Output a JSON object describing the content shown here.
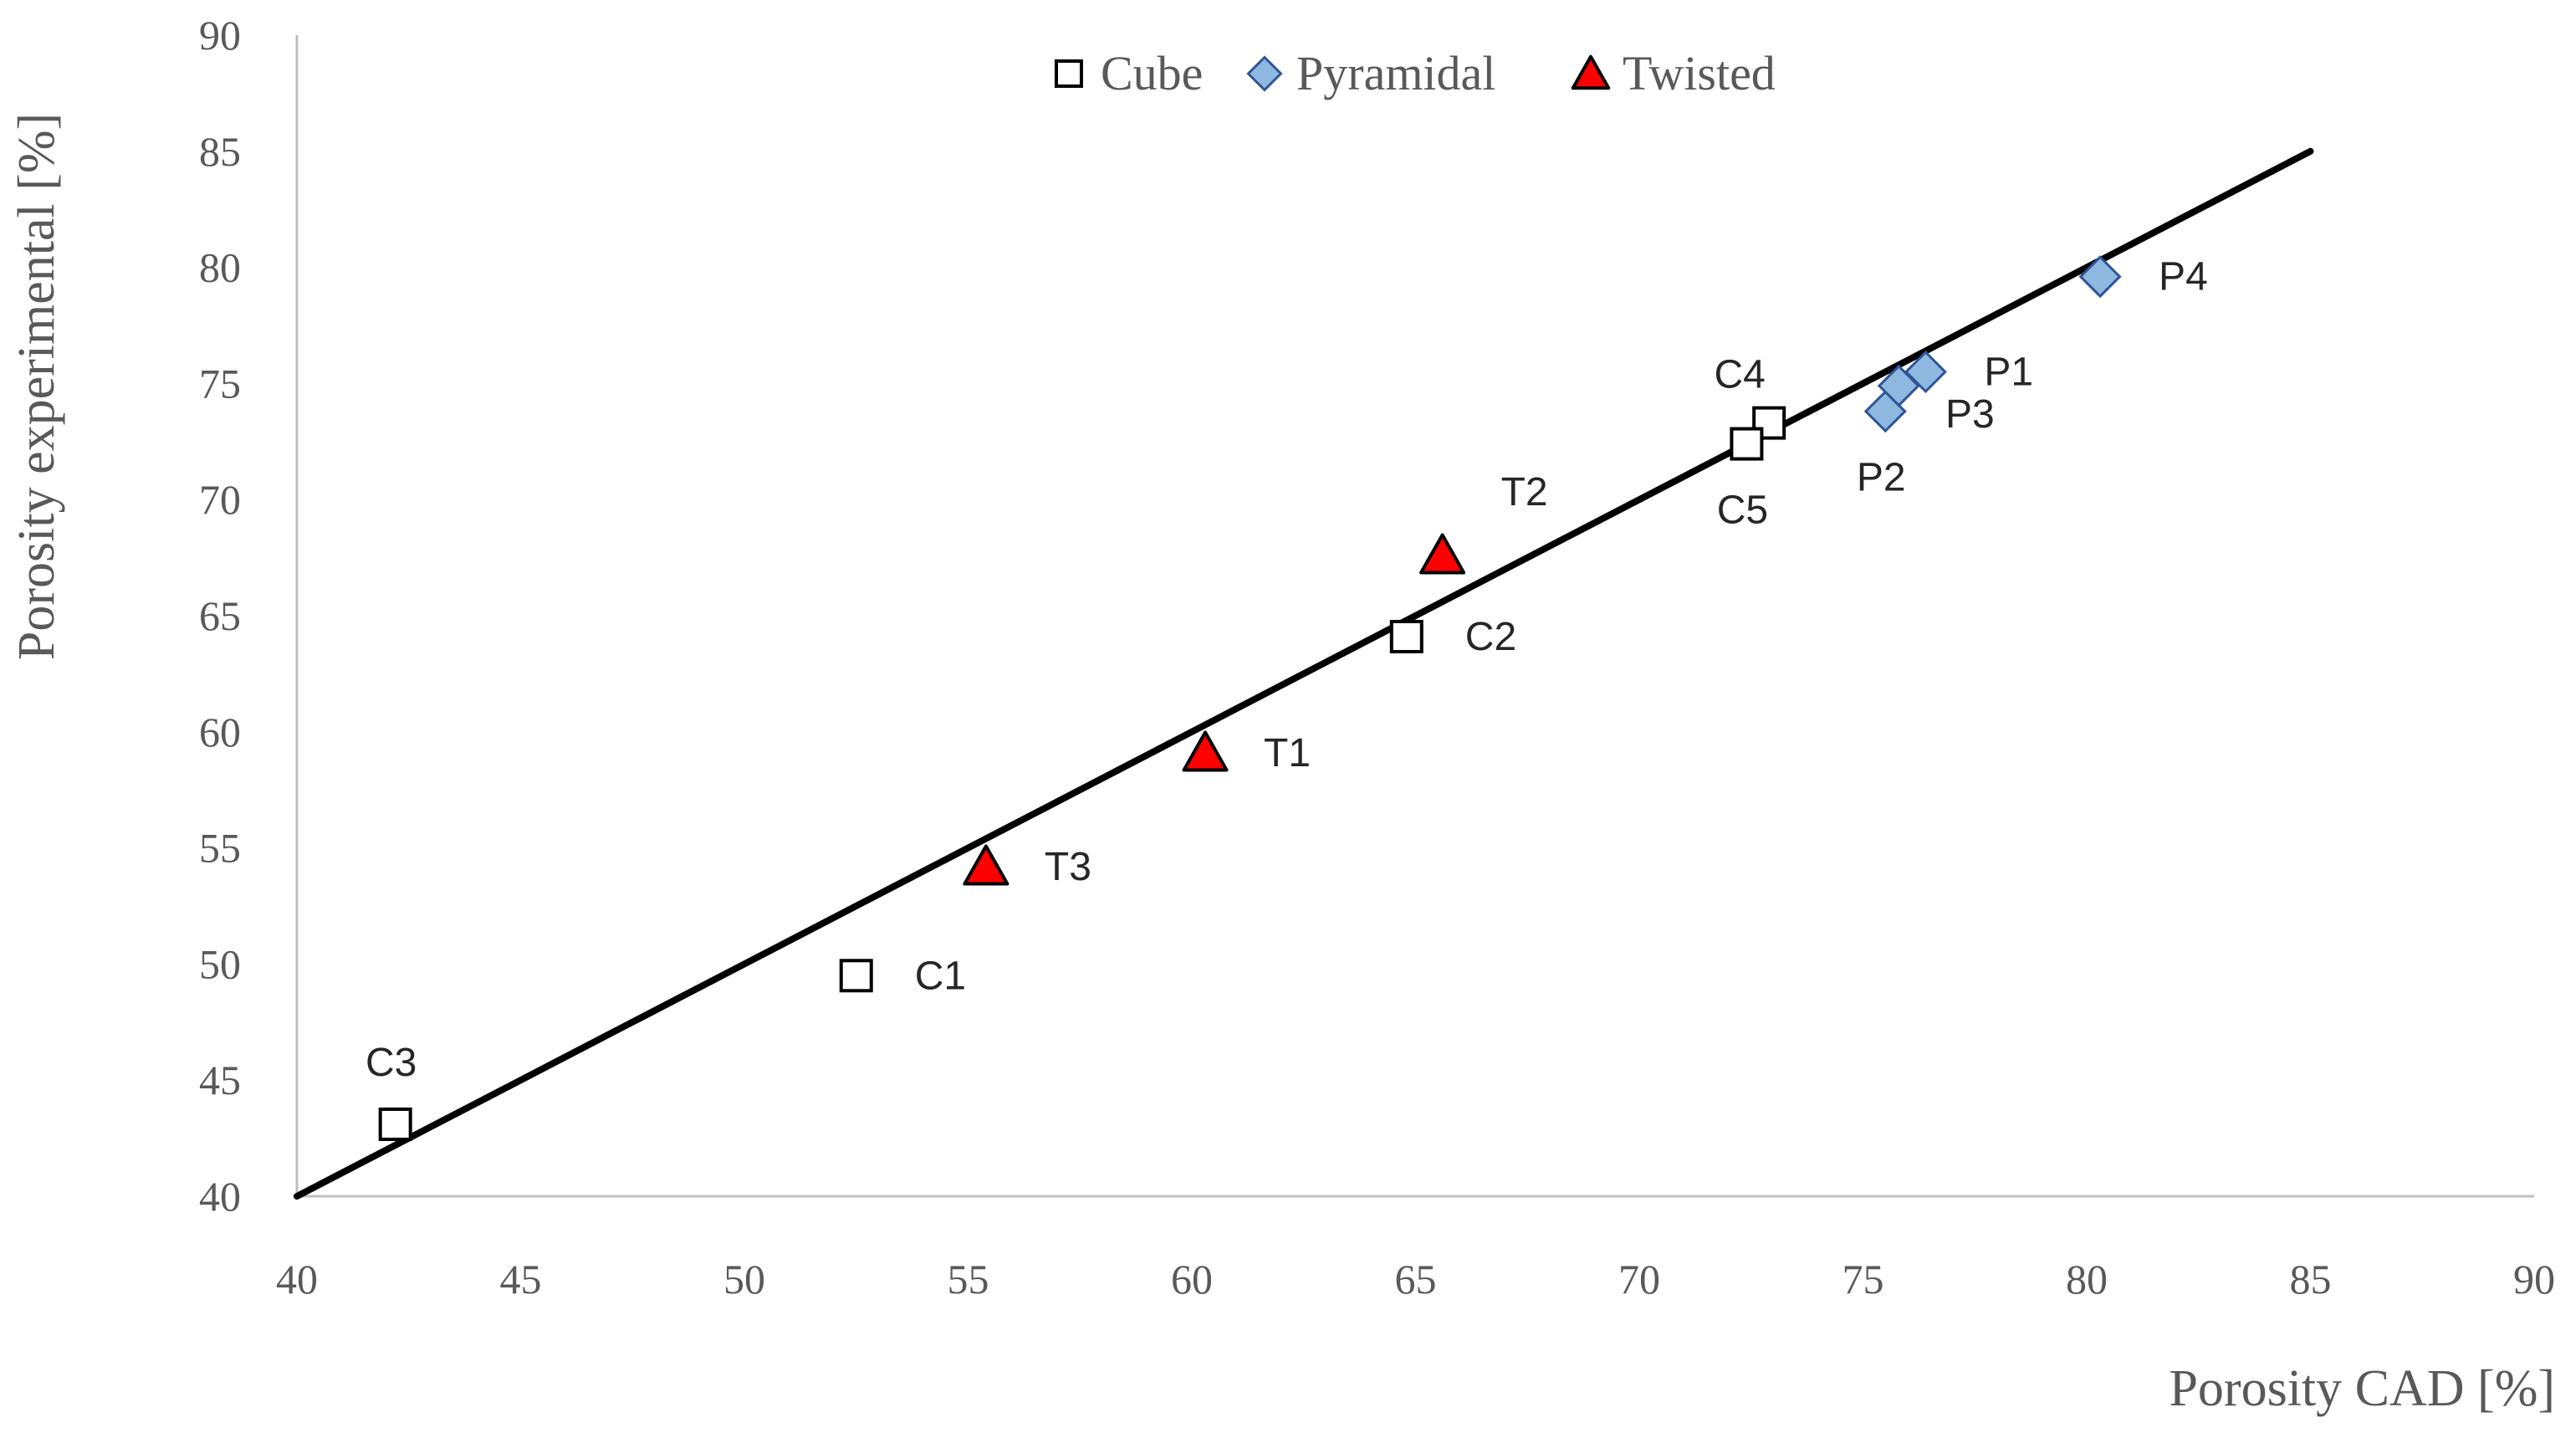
{
  "chart_data": {
    "type": "scatter",
    "xlabel": "Porosity CAD [%]",
    "ylabel": "Porosity experimental [%]",
    "xlim": [
      40,
      90
    ],
    "ylim": [
      40,
      90
    ],
    "xticks": [
      "40",
      "45",
      "50",
      "55",
      "60",
      "65",
      "70",
      "75",
      "80",
      "85",
      "90"
    ],
    "yticks": [
      "40",
      "45",
      "50",
      "55",
      "60",
      "65",
      "70",
      "75",
      "80",
      "85",
      "90"
    ],
    "legend_position": "top-center",
    "grid": false,
    "reference_line": {
      "x": [
        40,
        85
      ],
      "y": [
        40,
        85
      ],
      "color": "#000000"
    },
    "series": [
      {
        "name": "Cube",
        "marker": "square",
        "fill": "#ffffff",
        "stroke": "#000000",
        "points": [
          {
            "label": "C1",
            "x": 52.5,
            "y": 49.5,
            "label_pos": "right"
          },
          {
            "label": "C2",
            "x": 64.8,
            "y": 64.1,
            "label_pos": "right"
          },
          {
            "label": "C3",
            "x": 42.2,
            "y": 43.1,
            "label_pos": "above"
          },
          {
            "label": "C4",
            "x": 72.9,
            "y": 73.3,
            "label_pos": "above-left"
          },
          {
            "label": "C5",
            "x": 72.4,
            "y": 72.4,
            "label_pos": "below"
          }
        ]
      },
      {
        "name": "Pyramidal",
        "marker": "diamond",
        "fill": "#8FB8E0",
        "stroke": "#2F5597",
        "points": [
          {
            "label": "P1",
            "x": 76.4,
            "y": 75.5,
            "label_pos": "right"
          },
          {
            "label": "P2",
            "x": 75.5,
            "y": 73.8,
            "label_pos": "below"
          },
          {
            "label": "P3",
            "x": 75.8,
            "y": 74.9,
            "label_pos": "below-right"
          },
          {
            "label": "P4",
            "x": 80.3,
            "y": 79.6,
            "label_pos": "right"
          }
        ]
      },
      {
        "name": "Twisted",
        "marker": "triangle",
        "fill": "#FF0000",
        "stroke": "#000000",
        "points": [
          {
            "label": "T1",
            "x": 60.3,
            "y": 59.1,
            "label_pos": "right"
          },
          {
            "label": "T2",
            "x": 65.6,
            "y": 67.6,
            "label_pos": "above-right"
          },
          {
            "label": "T3",
            "x": 55.4,
            "y": 54.2,
            "label_pos": "right"
          }
        ]
      }
    ]
  }
}
